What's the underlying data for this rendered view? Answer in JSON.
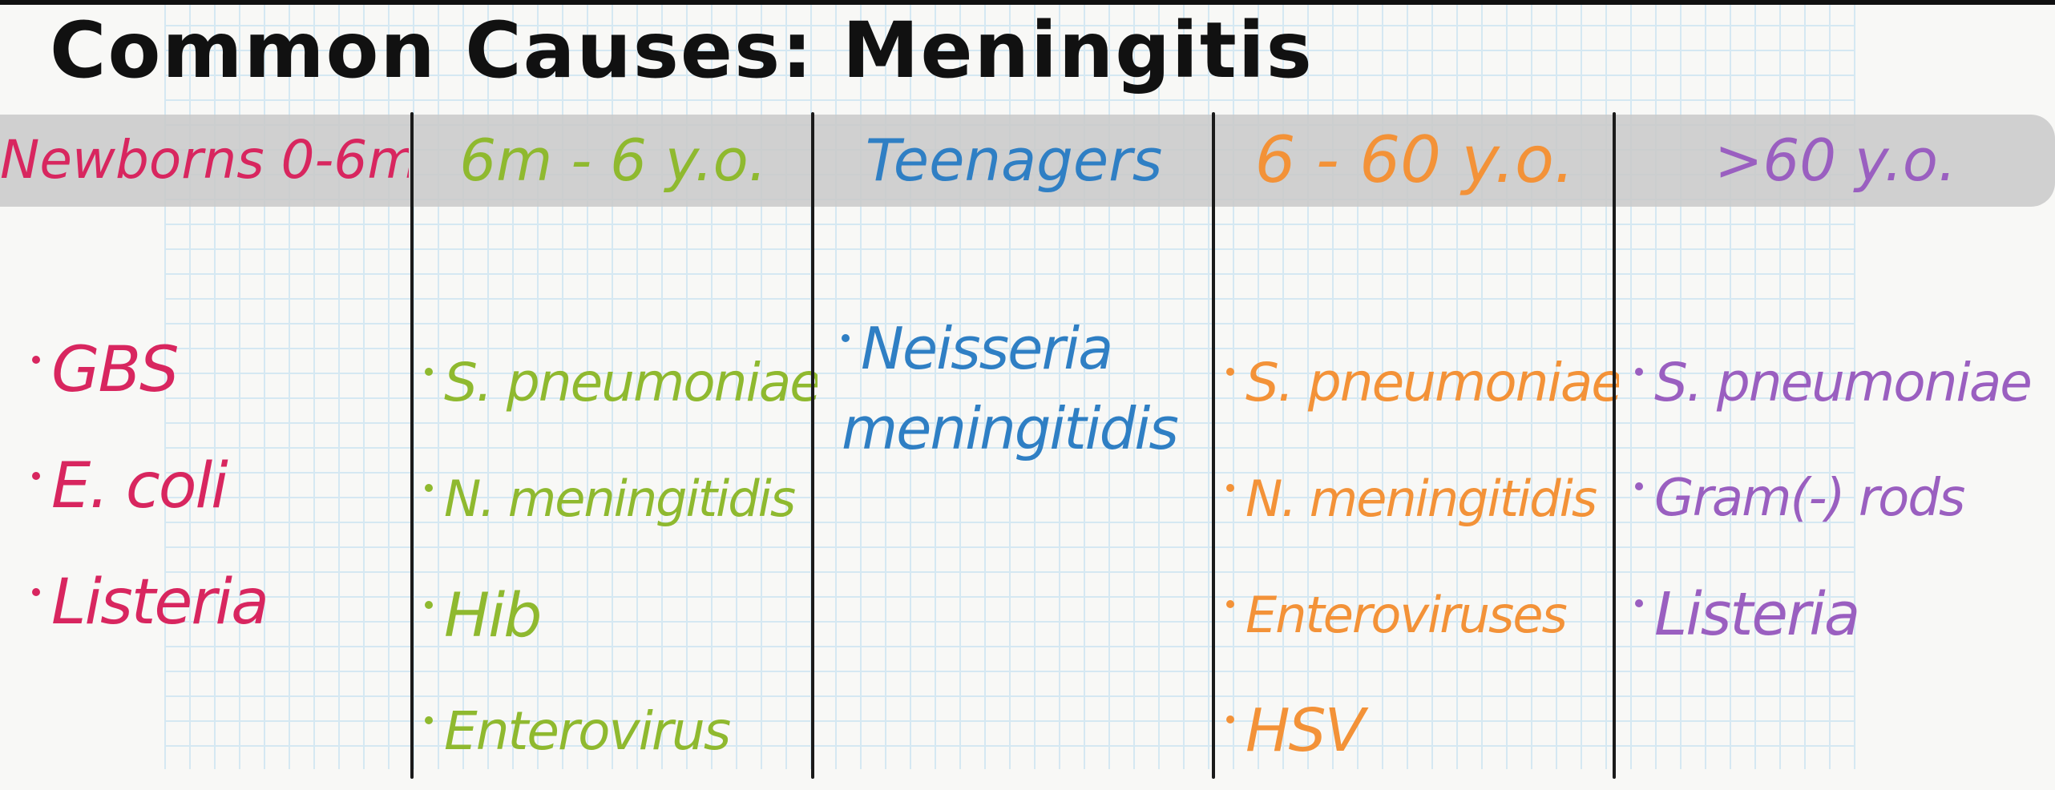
{
  "title": "Common Causes: Meningitis",
  "columns": [
    {
      "header": "Newborns 0-6m",
      "color": "#d8265f",
      "items": [
        "GBS",
        "E. coli",
        "Listeria"
      ]
    },
    {
      "header": "6m - 6 y.o.",
      "color": "#8fb92f",
      "items": [
        "S. pneumoniae",
        "N. meningitidis",
        "Hib",
        "Enterovirus"
      ]
    },
    {
      "header": "Teenagers",
      "color": "#2f7fc4",
      "items": [
        "Neisseria meningitidis"
      ]
    },
    {
      "header": "6 - 60 y.o.",
      "color": "#f39238",
      "items": [
        "S. pneumoniae",
        "N. meningitidis",
        "Enteroviruses",
        "HSV"
      ]
    },
    {
      "header": ">60 y.o.",
      "color": "#9a5fc0",
      "items": [
        "S. pneumoniae",
        "Gram(-) rods",
        "Listeria"
      ]
    }
  ]
}
